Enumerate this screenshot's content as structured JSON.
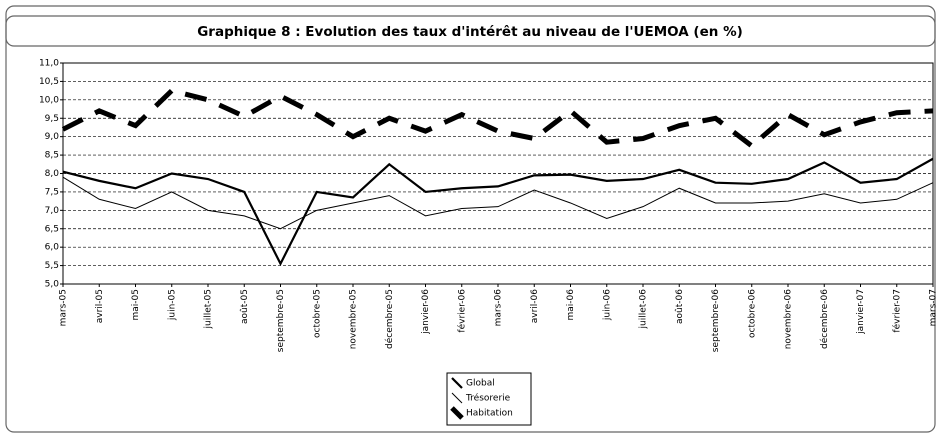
{
  "chart_data": {
    "type": "line",
    "title": "Graphique 8 : Evolution des taux d'intérêt au niveau de l'UEMOA (en %)",
    "categories": [
      "mars-05",
      "avril-05",
      "mai-05",
      "juin-05",
      "juillet-05",
      "août-05",
      "septembre-05",
      "octobre-05",
      "novembre-05",
      "décembre-05",
      "janvier-06",
      "février-06",
      "mars-06",
      "avril-06",
      "mai-06",
      "juin-06",
      "juillet-06",
      "août-06",
      "septembre-06",
      "octobre-06",
      "novembre-06",
      "décembre-06",
      "janvier-07",
      "février-07",
      "mars-07"
    ],
    "series": [
      {
        "name": "Global",
        "color": "#000000",
        "values": [
          8.05,
          7.8,
          7.6,
          8.0,
          7.85,
          7.5,
          5.55,
          7.5,
          7.35,
          8.25,
          7.5,
          7.6,
          7.65,
          7.95,
          7.97,
          7.8,
          7.85,
          8.1,
          7.75,
          7.72,
          7.85,
          8.3,
          7.75,
          7.85,
          8.4
        ]
      },
      {
        "name": "Trésorerie",
        "color": "#000000",
        "values": [
          7.9,
          7.3,
          7.05,
          7.5,
          7.0,
          6.85,
          6.5,
          7.0,
          7.2,
          7.4,
          6.85,
          7.05,
          7.1,
          7.55,
          7.2,
          6.78,
          7.1,
          7.6,
          7.2,
          7.2,
          7.25,
          7.45,
          7.2,
          7.3,
          7.75
        ]
      },
      {
        "name": "Habitation",
        "color": "#000000",
        "values": [
          9.2,
          9.7,
          9.3,
          10.25,
          10.0,
          9.55,
          10.1,
          9.6,
          9.0,
          9.5,
          9.15,
          9.6,
          9.15,
          8.95,
          9.7,
          8.85,
          8.95,
          9.3,
          9.5,
          8.75,
          9.6,
          9.05,
          9.4,
          9.65,
          9.7
        ]
      }
    ],
    "ylim": [
      5,
      11
    ],
    "yticks": [
      {
        "value": 5,
        "label": "5,0"
      },
      {
        "value": 5.5,
        "label": "5,5"
      },
      {
        "value": 6,
        "label": "6,0"
      },
      {
        "value": 6.5,
        "label": "6,5"
      },
      {
        "value": 7,
        "label": "7,0"
      },
      {
        "value": 7.5,
        "label": "7,5"
      },
      {
        "value": 8,
        "label": "8,0"
      },
      {
        "value": 8.5,
        "label": "8,5"
      },
      {
        "value": 9,
        "label": "9,0"
      },
      {
        "value": 9.5,
        "label": "9,5"
      },
      {
        "value": 10,
        "label": "10,0"
      },
      {
        "value": 10.5,
        "label": "10,5"
      },
      {
        "value": 11,
        "label": "11,0"
      }
    ],
    "grid": true,
    "legend": "bottom"
  }
}
